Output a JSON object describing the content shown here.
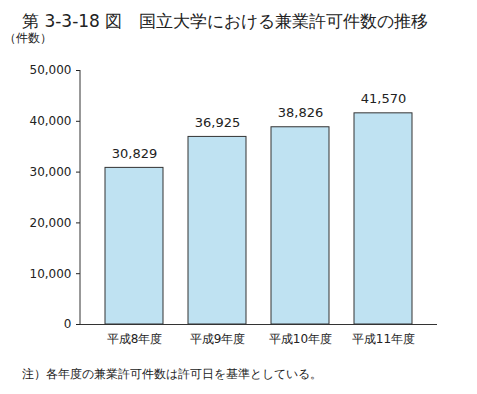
{
  "chart_data": {
    "type": "bar",
    "title": "第 3-3-18 図　国立大学における兼業許可件数の推移",
    "ylabel": "（件数）",
    "categories": [
      "平成8年度",
      "平成9年度",
      "平成10年度",
      "平成11年度"
    ],
    "values": [
      30829,
      36925,
      38826,
      41570
    ],
    "value_labels": [
      "30,829",
      "36,925",
      "38,826",
      "41,570"
    ],
    "data_labels": true,
    "color": "#bfe2f2",
    "ylim": [
      0,
      50000
    ],
    "yticks": [
      0,
      {
        "value": 10000,
        "label": "10,000"
      },
      {
        "value": 20000,
        "label": "20,000"
      },
      {
        "value": 30000,
        "label": "30,000"
      },
      {
        "value": 40000,
        "label": "40,000"
      },
      {
        "value": 50000,
        "label": "50,000"
      }
    ],
    "grid": false,
    "annotations": [
      "注）各年度の兼業許可件数は許可日を基準としている。"
    ]
  }
}
